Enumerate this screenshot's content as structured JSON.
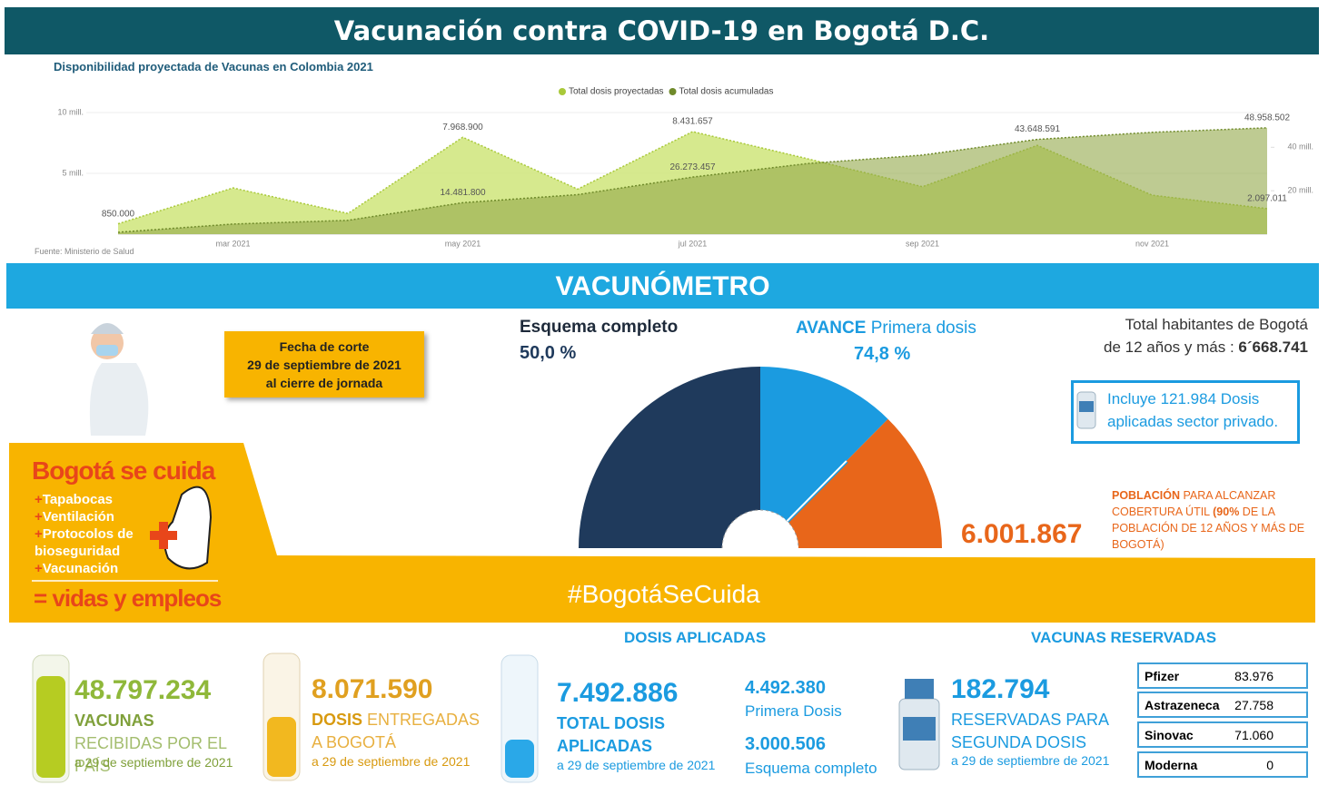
{
  "header": {
    "title": "Vacunación contra COVID-19 en Bogotá D.C."
  },
  "chart_data": [
    {
      "type": "area",
      "title": "Disponibilidad proyectada de Vacunas en Colombia 2021",
      "source": "Fuente: Ministerio de Salud",
      "categories": [
        null,
        "mar 2021",
        null,
        "may 2021",
        null,
        "jul 2021",
        null,
        "sep 2021",
        null,
        "nov 2021",
        null
      ],
      "series": [
        {
          "name": "Total dosis proyectadas",
          "color": "#cfe57a",
          "line_color": "#a9c93a",
          "axis": "y",
          "values": [
            850000,
            3800000,
            1700000,
            7968900,
            3700000,
            8431657,
            6200000,
            3900000,
            7300000,
            3200000,
            2097011
          ],
          "value_labels": [
            "850.000",
            null,
            null,
            "7.968.900",
            null,
            "8.431.657",
            null,
            null,
            null,
            null,
            "2.097.011"
          ]
        },
        {
          "name": "Total dosis acumuladas",
          "color": "#93a94a",
          "line_color": "#6f8a2a",
          "axis": "y2",
          "values": [
            850000,
            4650000,
            6350000,
            14481800,
            18200000,
            26273457,
            32500000,
            36400000,
            43648591,
            46900000,
            48958502
          ],
          "value_labels": [
            null,
            null,
            null,
            "14.481.800",
            null,
            "26.273.457",
            null,
            null,
            "43.648.591",
            null,
            "48.958.502"
          ]
        }
      ],
      "ylim": [
        0,
        10000000
      ],
      "yticks": [
        {
          "value": 5000000,
          "label": "5 mill."
        },
        {
          "value": 10000000,
          "label": "10 mill."
        }
      ],
      "y2lim": [
        0,
        56000000
      ],
      "y2ticks": [
        {
          "value": 20000000,
          "label": "20 mill."
        },
        {
          "value": 40000000,
          "label": "40 mill."
        }
      ],
      "grid": true,
      "legend": "top"
    },
    {
      "type": "gauge",
      "ylim": [
        0,
        100
      ],
      "series": [
        {
          "name": "Esquema completo",
          "value": 50.0,
          "value_label": "50,0 %",
          "color": "#1f3a5c"
        },
        {
          "prefix": "AVANCE",
          "name": "Primera dosis",
          "value": 74.8,
          "value_label": "74,8 %",
          "color": "#1b9be0"
        }
      ],
      "remainder_color": "#e8661a"
    }
  ],
  "vacunometro": {
    "title": "VACUNÓMETRO",
    "fecha": [
      "Fecha de corte",
      "29 de septiembre de 2021",
      "al cierre de jornada"
    ],
    "habitantes": {
      "line1": "Total habitantes de Bogotá",
      "line2": "de 12 años y más : ",
      "value": "6´668.741"
    },
    "privado": "Incluye 121.984 Dosis aplicadas sector privado.",
    "meta": {
      "value": "6.001.867",
      "label1": "POBLACIÓN",
      "label2": " PARA ALCANZAR COBERTURA ÚTIL ",
      "label3": "(90%",
      "label4": " DE LA POBLACIÓN DE 12 AÑOS Y MÁS DE BOGOTÁ)"
    }
  },
  "campaign": {
    "title": "Bogotá se cuida",
    "items": [
      "Tapabocas",
      "Ventilación",
      "Protocolos de bioseguridad",
      "Vacunación"
    ],
    "result": "= vidas y empleos",
    "hashtag": "#BogotáSeCuida"
  },
  "sections": {
    "applied": "DOSIS APLICADAS",
    "reserved": "VACUNAS RESERVADAS"
  },
  "stats": {
    "received": {
      "value": "48.797.234",
      "bold": "VACUNAS",
      "rest": " RECIBIDAS POR EL PAÍS",
      "date": "a 29 de septiembre de 2021"
    },
    "delivered": {
      "value": "8.071.590",
      "bold": "DOSIS",
      "rest": " ENTREGADAS A BOGOTÁ",
      "date": "a 29 de septiembre de 2021"
    },
    "applied": {
      "value": "7.492.886",
      "label": "TOTAL DOSIS APLICADAS",
      "date": "a 29 de septiembre de 2021"
    },
    "first": {
      "value": "4.492.380",
      "label": "Primera Dosis"
    },
    "complete": {
      "value": "3.000.506",
      "label": "Esquema completo"
    },
    "reserved": {
      "value": "182.794",
      "label": "RESERVADAS PARA SEGUNDA DOSIS",
      "date": "a 29 de septiembre de 2021"
    }
  },
  "table": {
    "rows": [
      [
        "Pfizer",
        "83.976"
      ],
      [
        "Astrazeneca",
        "27.758"
      ],
      [
        "Sinovac",
        "71.060"
      ],
      [
        "Moderna",
        "0"
      ]
    ]
  }
}
